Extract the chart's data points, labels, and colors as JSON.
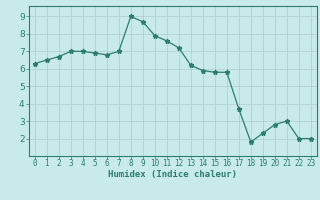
{
  "x": [
    0,
    1,
    2,
    3,
    4,
    5,
    6,
    7,
    8,
    9,
    10,
    11,
    12,
    13,
    14,
    15,
    16,
    17,
    18,
    19,
    20,
    21,
    22,
    23
  ],
  "y": [
    6.3,
    6.5,
    6.7,
    7.0,
    7.0,
    6.9,
    6.8,
    7.0,
    9.0,
    8.7,
    7.9,
    7.6,
    7.2,
    6.2,
    5.9,
    5.8,
    5.8,
    3.7,
    1.8,
    2.3,
    2.8,
    3.0,
    2.0,
    2.0
  ],
  "line_color": "#2d7d6e",
  "marker": "*",
  "marker_size": 3.5,
  "bg_color": "#c8eaea",
  "grid_color": "#b0cccc",
  "axis_label_color": "#2d7d6e",
  "tick_label_color": "#2d7d6e",
  "xlabel": "Humidex (Indice chaleur)",
  "xlim": [
    -0.5,
    23.5
  ],
  "ylim": [
    1.0,
    9.6
  ],
  "yticks": [
    2,
    3,
    4,
    5,
    6,
    7,
    8,
    9
  ],
  "xticks": [
    0,
    1,
    2,
    3,
    4,
    5,
    6,
    7,
    8,
    9,
    10,
    11,
    12,
    13,
    14,
    15,
    16,
    17,
    18,
    19,
    20,
    21,
    22,
    23
  ],
  "xlabel_fontsize": 6.5,
  "tick_fontsize": 5.5,
  "ytick_fontsize": 6.5
}
